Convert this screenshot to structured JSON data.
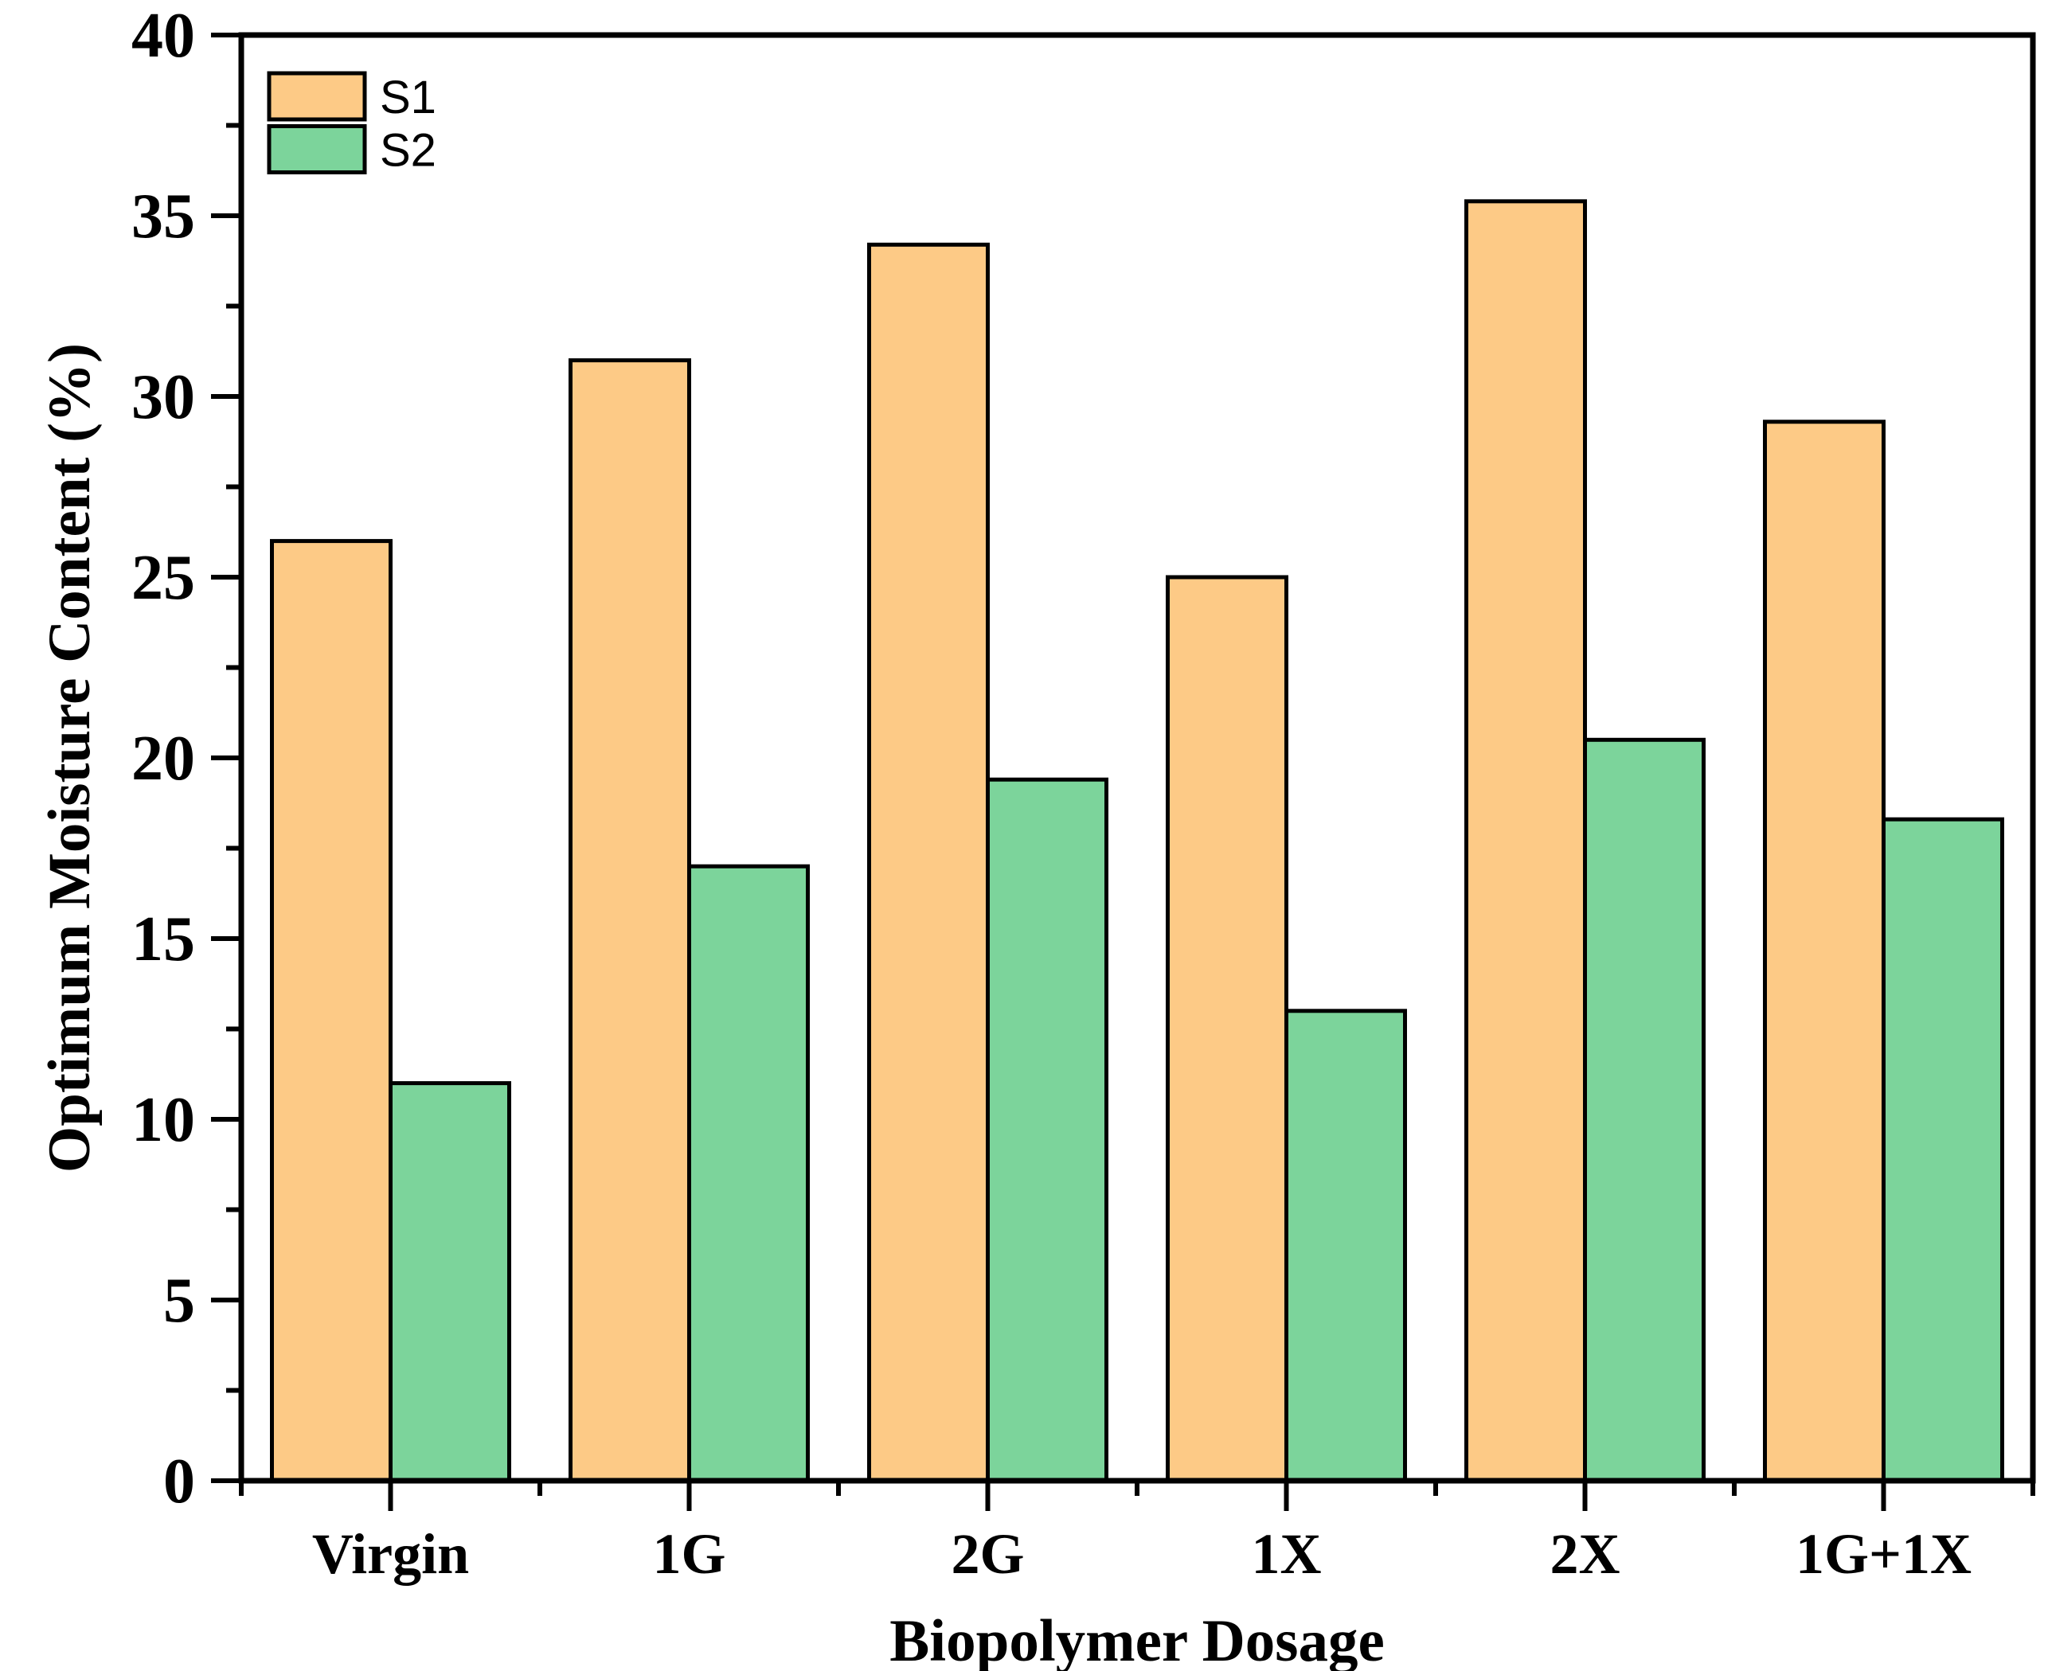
{
  "chart_data": {
    "type": "bar",
    "title": "",
    "categories": [
      "Virgin",
      "1G",
      "2G",
      "1X",
      "2X",
      "1G+1X"
    ],
    "series": [
      {
        "name": "S1",
        "color": "#FDCA86",
        "values": [
          26.0,
          31.0,
          34.2,
          25.0,
          35.4,
          29.3
        ]
      },
      {
        "name": "S2",
        "color": "#7CD49B",
        "values": [
          11.0,
          17.0,
          19.4,
          13.0,
          20.5,
          18.3
        ]
      }
    ],
    "xlabel": "Biopolymer Dosage",
    "ylabel": "Optimum Moisture Content (%)",
    "ylim": [
      0,
      40
    ],
    "y_major_step": 5,
    "y_minor_step": 2.5,
    "y_tick_labels": [
      "0",
      "5",
      "10",
      "15",
      "20",
      "25",
      "30",
      "35",
      "40"
    ],
    "grid": false,
    "legend_position": "top-left",
    "bar_edge_color": "#000000",
    "frame_color": "#000000",
    "background_color": "#FFFFFF"
  }
}
